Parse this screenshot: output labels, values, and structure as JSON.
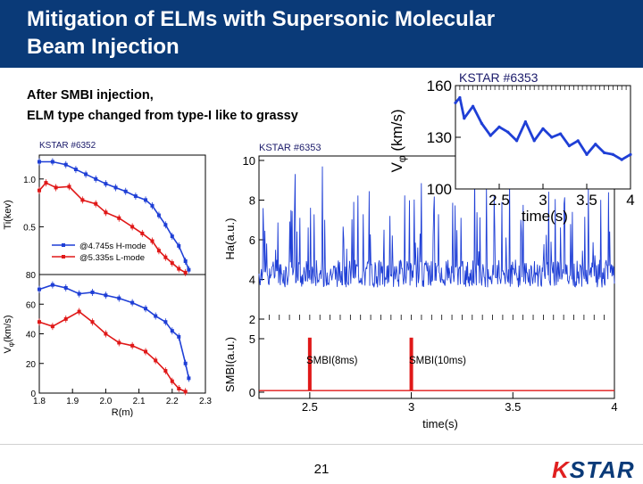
{
  "slide": {
    "title_line1": "Mitigation of ELMs with Supersonic Molecular",
    "title_line2": "Beam Injection",
    "note_line1": "After SMBI injection,",
    "note_line2": "ELM type changed from type-I like to grassy",
    "page_number": "21",
    "logo_text": "KSTAR",
    "colors": {
      "title_bar": "#0a3a78",
      "blue": "#1f3fd6",
      "red": "#e01818",
      "logo": "#0a3a78"
    }
  },
  "chart_data": [
    {
      "id": "profiles",
      "type": "line",
      "shot_label": "KSTAR #6352",
      "xlabel": "R(m)",
      "x_ticks": [
        "1.8",
        "1.9",
        "2.0",
        "2.1",
        "2.2",
        "2.3"
      ],
      "xlim": [
        1.8,
        2.3
      ],
      "top": {
        "ylabel": "Ti(kev)",
        "y_ticks": [
          "1.0",
          "0.5"
        ],
        "ylim": [
          0,
          1.25
        ],
        "series": [
          {
            "name": "@4.745s H-mode",
            "color": "#1f3fd6",
            "x": [
              1.8,
              1.84,
              1.88,
              1.91,
              1.94,
              1.97,
              2.0,
              2.03,
              2.06,
              2.09,
              2.12,
              2.14,
              2.16,
              2.18,
              2.2,
              2.22,
              2.24,
              2.25
            ],
            "y": [
              1.18,
              1.18,
              1.15,
              1.1,
              1.05,
              1.0,
              0.95,
              0.91,
              0.87,
              0.82,
              0.78,
              0.72,
              0.62,
              0.52,
              0.4,
              0.3,
              0.14,
              0.05
            ]
          },
          {
            "name": "@5.335s L-mode",
            "color": "#e01818",
            "x": [
              1.8,
              1.82,
              1.85,
              1.89,
              1.93,
              1.97,
              2.0,
              2.04,
              2.08,
              2.11,
              2.14,
              2.16,
              2.18,
              2.2,
              2.22,
              2.24
            ],
            "y": [
              0.88,
              0.96,
              0.91,
              0.92,
              0.78,
              0.74,
              0.65,
              0.59,
              0.5,
              0.43,
              0.35,
              0.25,
              0.18,
              0.12,
              0.06,
              0.02
            ]
          }
        ]
      },
      "bottom": {
        "ylabel": "V_phi(km/s)",
        "y_ticks": [
          "80",
          "60",
          "40",
          "20",
          "0"
        ],
        "ylim": [
          0,
          80
        ],
        "series": [
          {
            "name": "@4.745s H-mode",
            "color": "#1f3fd6",
            "x": [
              1.8,
              1.84,
              1.88,
              1.92,
              1.96,
              2.0,
              2.04,
              2.08,
              2.12,
              2.15,
              2.18,
              2.2,
              2.22,
              2.24,
              2.25
            ],
            "y": [
              70,
              73,
              71,
              67,
              68,
              66,
              64,
              61,
              57,
              52,
              48,
              42,
              38,
              20,
              10
            ]
          },
          {
            "name": "@5.335s L-mode",
            "color": "#e01818",
            "x": [
              1.8,
              1.84,
              1.88,
              1.92,
              1.96,
              2.0,
              2.04,
              2.08,
              2.12,
              2.15,
              2.18,
              2.2,
              2.22,
              2.24
            ],
            "y": [
              48,
              45,
              50,
              55,
              48,
              40,
              34,
              32,
              28,
              22,
              15,
              8,
              3,
              1
            ]
          }
        ]
      }
    },
    {
      "id": "ha_smbi",
      "type": "line",
      "shot_label": "KSTAR #6353",
      "xlabel": "time(s)",
      "x_ticks": [
        "2.5",
        "3",
        "3.5",
        "4"
      ],
      "xlim": [
        2.25,
        4.0
      ],
      "top": {
        "ylabel": "Ha(a.u.)",
        "y_ticks": [
          "10",
          "8",
          "6",
          "4",
          "2"
        ],
        "ylim": [
          2,
          10
        ],
        "series": [
          {
            "name": "Ha",
            "color": "#1f3fd6",
            "description": "noisy ELM signal with tall spikes"
          }
        ]
      },
      "bottom": {
        "ylabel": "SMBI(a.u.)",
        "y_ticks": [
          "5",
          "0"
        ],
        "ylim": [
          0,
          6
        ],
        "annotations": [
          "SMBI(8ms)",
          "SMBI(10ms)"
        ],
        "series": [
          {
            "name": "SMBI",
            "color": "#e01818",
            "x": [
              2.5,
              3.0
            ],
            "pulse_height": 5.1
          }
        ]
      }
    },
    {
      "id": "v_phi_inset",
      "type": "line",
      "shot_label": "KSTAR #6353",
      "xlabel": "time(s)",
      "ylabel": "V_phi (km/s)",
      "x_ticks": [
        "2.5",
        "3",
        "3.5",
        "4"
      ],
      "y_ticks": [
        "160",
        "130",
        "100"
      ],
      "xlim": [
        2.0,
        4.0
      ],
      "ylim": [
        100,
        160
      ],
      "series": [
        {
          "name": "V_phi",
          "color": "#1f3fd6",
          "x": [
            2.0,
            2.05,
            2.1,
            2.2,
            2.3,
            2.4,
            2.5,
            2.6,
            2.7,
            2.8,
            2.9,
            3.0,
            3.1,
            3.2,
            3.3,
            3.4,
            3.5,
            3.6,
            3.7,
            3.8,
            3.9,
            4.0
          ],
          "y": [
            150,
            153,
            141,
            148,
            138,
            131,
            136,
            133,
            128,
            139,
            128,
            135,
            130,
            132,
            125,
            128,
            120,
            126,
            121,
            120,
            117,
            120
          ]
        }
      ]
    }
  ]
}
